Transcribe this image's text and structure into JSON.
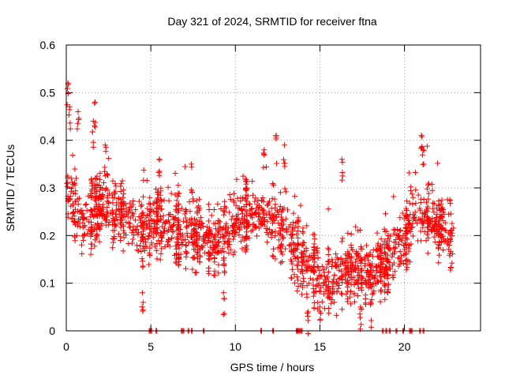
{
  "chart_data": {
    "type": "scatter",
    "title": "Day 321 of 2024, SRMTID for receiver ftna",
    "xlabel": "GPS time / hours",
    "ylabel": "SRMTID / TECUs",
    "xlim": [
      0,
      24.5
    ],
    "ylim": [
      0,
      0.6
    ],
    "xticks": [
      0,
      5,
      10,
      15,
      20
    ],
    "xtick_labels": [
      "0",
      "5",
      "10",
      "15",
      "20"
    ],
    "yticks": [
      0,
      0.1,
      0.2,
      0.3,
      0.4,
      0.5,
      0.6
    ],
    "ytick_labels": [
      "0",
      "0.1",
      "0.2",
      "0.3",
      "0.4",
      "0.5",
      "0.6"
    ],
    "grid": true,
    "marker": "plus",
    "color": "#ff0000",
    "series": [
      {
        "name": "SRMTID",
        "trend": [
          {
            "x": 0.0,
            "y": 0.3
          },
          {
            "x": 0.5,
            "y": 0.26
          },
          {
            "x": 1.0,
            "y": 0.22
          },
          {
            "x": 1.5,
            "y": 0.24
          },
          {
            "x": 2.0,
            "y": 0.26
          },
          {
            "x": 2.5,
            "y": 0.25
          },
          {
            "x": 3.0,
            "y": 0.25
          },
          {
            "x": 3.5,
            "y": 0.24
          },
          {
            "x": 4.0,
            "y": 0.22
          },
          {
            "x": 4.5,
            "y": 0.21
          },
          {
            "x": 5.0,
            "y": 0.22
          },
          {
            "x": 5.5,
            "y": 0.23
          },
          {
            "x": 6.0,
            "y": 0.22
          },
          {
            "x": 6.5,
            "y": 0.21
          },
          {
            "x": 7.0,
            "y": 0.21
          },
          {
            "x": 7.5,
            "y": 0.2
          },
          {
            "x": 8.0,
            "y": 0.2
          },
          {
            "x": 8.5,
            "y": 0.19
          },
          {
            "x": 9.0,
            "y": 0.19
          },
          {
            "x": 9.5,
            "y": 0.2
          },
          {
            "x": 10.0,
            "y": 0.22
          },
          {
            "x": 10.5,
            "y": 0.24
          },
          {
            "x": 11.0,
            "y": 0.24
          },
          {
            "x": 11.5,
            "y": 0.25
          },
          {
            "x": 12.0,
            "y": 0.24
          },
          {
            "x": 12.5,
            "y": 0.22
          },
          {
            "x": 13.0,
            "y": 0.2
          },
          {
            "x": 13.5,
            "y": 0.17
          },
          {
            "x": 14.0,
            "y": 0.15
          },
          {
            "x": 14.5,
            "y": 0.13
          },
          {
            "x": 15.0,
            "y": 0.11
          },
          {
            "x": 15.5,
            "y": 0.1
          },
          {
            "x": 16.0,
            "y": 0.11
          },
          {
            "x": 16.5,
            "y": 0.13
          },
          {
            "x": 17.0,
            "y": 0.13
          },
          {
            "x": 17.5,
            "y": 0.12
          },
          {
            "x": 18.0,
            "y": 0.13
          },
          {
            "x": 18.5,
            "y": 0.13
          },
          {
            "x": 19.0,
            "y": 0.15
          },
          {
            "x": 19.5,
            "y": 0.17
          },
          {
            "x": 20.0,
            "y": 0.2
          },
          {
            "x": 20.5,
            "y": 0.23
          },
          {
            "x": 21.0,
            "y": 0.24
          },
          {
            "x": 21.5,
            "y": 0.23
          },
          {
            "x": 22.0,
            "y": 0.22
          },
          {
            "x": 22.5,
            "y": 0.21
          },
          {
            "x": 22.9,
            "y": 0.2
          }
        ],
        "spread": 0.05,
        "peaks": [
          {
            "x": 0.1,
            "y": 0.52
          },
          {
            "x": 0.2,
            "y": 0.47
          },
          {
            "x": 0.7,
            "y": 0.46
          },
          {
            "x": 1.7,
            "y": 0.48
          },
          {
            "x": 1.6,
            "y": 0.44
          },
          {
            "x": 2.3,
            "y": 0.39
          },
          {
            "x": 5.5,
            "y": 0.36
          },
          {
            "x": 7.4,
            "y": 0.35
          },
          {
            "x": 11.7,
            "y": 0.38
          },
          {
            "x": 12.4,
            "y": 0.41
          },
          {
            "x": 12.9,
            "y": 0.39
          },
          {
            "x": 16.3,
            "y": 0.36
          },
          {
            "x": 21.0,
            "y": 0.41
          },
          {
            "x": 21.1,
            "y": 0.38
          },
          {
            "x": 14.3,
            "y": 0.04
          },
          {
            "x": 15.0,
            "y": 0.05
          },
          {
            "x": 17.4,
            "y": 0.05
          },
          {
            "x": 18.0,
            "y": 0.06
          },
          {
            "x": 4.5,
            "y": 0.08
          },
          {
            "x": 9.3,
            "y": 0.08
          }
        ],
        "zeros_x": [
          4.9,
          5.0,
          5.3,
          6.8,
          6.9,
          7.2,
          7.4,
          8.1,
          11.5,
          12.2,
          13.6,
          13.7,
          13.8,
          13.9,
          18.7,
          18.9,
          19.1,
          19.5,
          19.9,
          20.3,
          20.4,
          20.9,
          21.1
        ]
      }
    ]
  }
}
